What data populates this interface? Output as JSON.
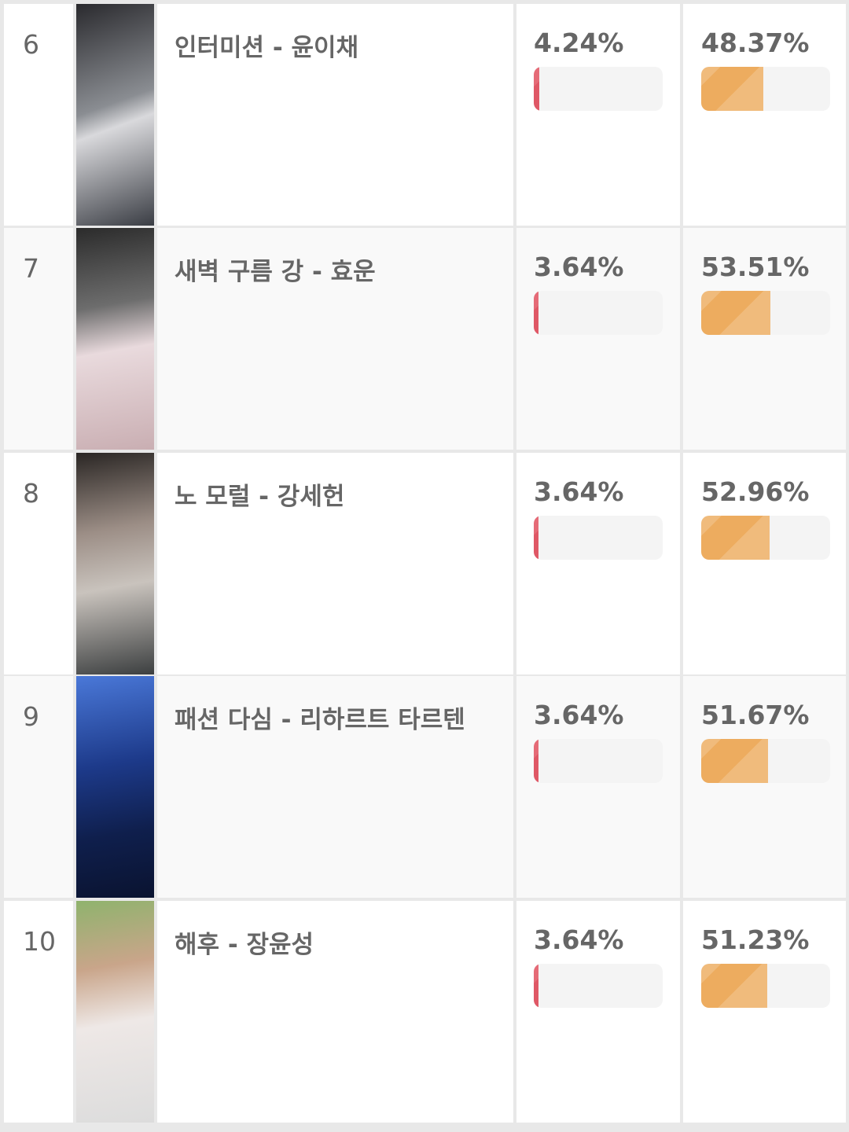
{
  "rows": [
    {
      "rank": "6",
      "name": "인터미션 - 윤이채",
      "pct1": "4.24%",
      "pct1_value": 4.24,
      "pct2": "48.37%",
      "pct2_value": 48.37,
      "image": "linear-gradient(160deg,#2a2a2e,#8a8d92 45%,#d9d9dc 55%,#3a3d44)"
    },
    {
      "rank": "7",
      "name": "새벽 구름 강 - 효운",
      "pct1": "3.64%",
      "pct1_value": 3.64,
      "pct2": "53.51%",
      "pct2_value": 53.51,
      "image": "linear-gradient(170deg,#2b2b2b,#6d6d6d 35%,#e9dadd 55%,#c9aeb2)"
    },
    {
      "rank": "8",
      "name": "노 모럴 - 강세헌",
      "pct1": "3.64%",
      "pct1_value": 3.64,
      "pct2": "52.96%",
      "pct2_value": 52.96,
      "image": "linear-gradient(170deg,#2a2624,#9c8e86 35%,#c9c3bd 60%,#3c3f40)"
    },
    {
      "rank": "9",
      "name": "패션 다심 - 리하르트 타르텐",
      "pct1": "3.64%",
      "pct1_value": 3.64,
      "pct2": "51.67%",
      "pct2_value": 51.67,
      "image": "linear-gradient(170deg,#4a78d8,#1d3a8a 40%,#0f1f4d 70%,#0a1330)"
    },
    {
      "rank": "10",
      "name": "해후 - 장윤성",
      "pct1": "3.64%",
      "pct1_value": 3.64,
      "pct2": "51.23%",
      "pct2_value": 51.23,
      "image": "linear-gradient(170deg,#8fb36d,#c9a58a 30%,#eee8e6 55%,#dcdcdc)"
    }
  ],
  "colors": {
    "bar_low": "#df5866",
    "bar_high": "#edac5f",
    "track": "#f4f4f4"
  }
}
